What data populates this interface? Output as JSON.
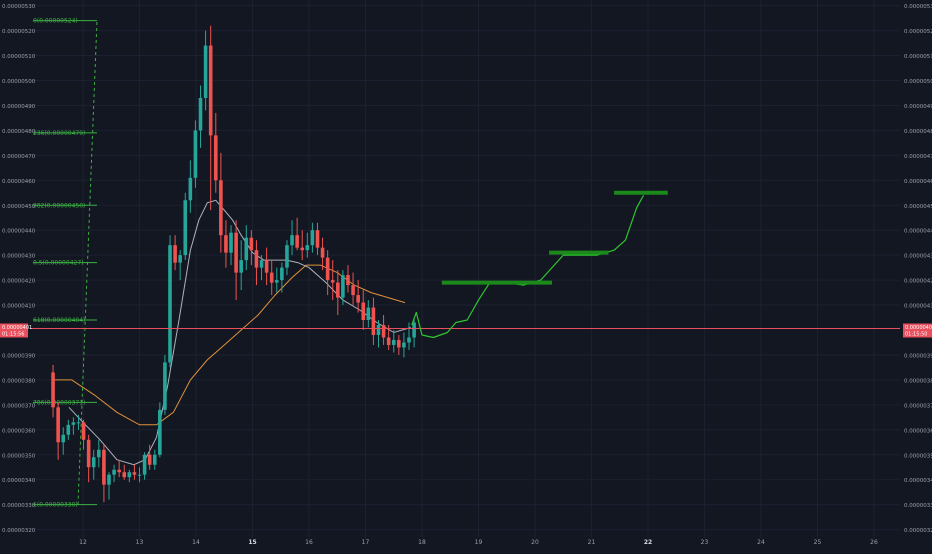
{
  "chart_data": {
    "type": "candlestick",
    "title": "",
    "price_axis_labels": [
      "0.00000530",
      "0.00000520",
      "0.00000510",
      "0.00000500",
      "0.00000490",
      "0.00000480",
      "0.00000470",
      "0.00000460",
      "0.00000450",
      "0.00000440",
      "0.00000430",
      "0.00000420",
      "0.00000410",
      "0.00000390",
      "0.00000380",
      "0.00000370",
      "0.00000360",
      "0.00000350",
      "0.00000340",
      "0.00000330",
      "0.00000320"
    ],
    "price_axis_values": [
      530,
      520,
      510,
      500,
      490,
      480,
      470,
      460,
      450,
      440,
      430,
      420,
      410,
      390,
      380,
      370,
      360,
      350,
      340,
      330,
      320
    ],
    "price_unit_scale": 1e-08,
    "ylim": [
      318,
      533
    ],
    "x_ticks": [
      {
        "label": "12",
        "day": 12,
        "bold": false
      },
      {
        "label": "13",
        "day": 13,
        "bold": false
      },
      {
        "label": "14",
        "day": 14,
        "bold": false
      },
      {
        "label": "15",
        "day": 15,
        "bold": true
      },
      {
        "label": "16",
        "day": 16,
        "bold": false
      },
      {
        "label": "17",
        "day": 17,
        "bold": false
      },
      {
        "label": "18",
        "day": 18,
        "bold": false
      },
      {
        "label": "19",
        "day": 19,
        "bold": false
      },
      {
        "label": "20",
        "day": 20,
        "bold": false
      },
      {
        "label": "21",
        "day": 21,
        "bold": false
      },
      {
        "label": "22",
        "day": 22,
        "bold": true
      },
      {
        "label": "23",
        "day": 23,
        "bold": false
      },
      {
        "label": "24",
        "day": 24,
        "bold": false
      },
      {
        "label": "25",
        "day": 25,
        "bold": false
      },
      {
        "label": "26",
        "day": 26,
        "bold": false
      }
    ],
    "current_price": {
      "left_price": "0.00000401",
      "left_timer": "01:15:56",
      "right_price": "0.00000401",
      "right_timer": "01:15:50",
      "value": 400.6,
      "color": "#e94f5d"
    },
    "fib_levels": [
      {
        "label": "0(0.00000524)",
        "value": 524
      },
      {
        "label": "236(0.00000479)",
        "value": 479
      },
      {
        "label": "382(0.00000450)",
        "value": 450
      },
      {
        "label": "0.5(0.00000427)",
        "value": 427
      },
      {
        "label": "618(0.00000404)",
        "value": 404
      },
      {
        "label": "786(0.00000371)",
        "value": 371
      },
      {
        "label": "1(0.00000330)",
        "value": 330
      }
    ],
    "fib_color": "#3cb043",
    "fib_trend_line": {
      "from": {
        "day": 12.0,
        "price": 330
      },
      "to": {
        "day": 12.25,
        "price": 524
      }
    },
    "up_color": "#26a69a",
    "down_color": "#ef5350",
    "candles": [
      [
        11.47,
        383,
        386,
        365,
        369
      ],
      [
        11.56,
        369,
        371,
        348,
        355
      ],
      [
        11.65,
        355,
        361,
        350,
        358
      ],
      [
        11.74,
        358,
        364,
        356,
        362
      ],
      [
        11.83,
        362,
        365,
        358,
        363
      ],
      [
        11.92,
        363,
        366,
        360,
        363
      ],
      [
        12.01,
        363,
        364,
        352,
        356
      ],
      [
        12.1,
        356,
        358,
        339,
        345
      ],
      [
        12.19,
        345,
        352,
        340,
        349
      ],
      [
        12.28,
        349,
        356,
        345,
        352
      ],
      [
        12.37,
        352,
        354,
        331,
        338
      ],
      [
        12.46,
        338,
        343,
        332,
        342
      ],
      [
        12.55,
        342,
        346,
        339,
        344
      ],
      [
        12.64,
        344,
        348,
        341,
        343
      ],
      [
        12.73,
        343,
        346,
        340,
        341
      ],
      [
        12.82,
        341,
        344,
        339,
        343
      ],
      [
        12.91,
        343,
        346,
        340,
        342
      ],
      [
        13.0,
        342,
        345,
        339,
        342
      ],
      [
        13.09,
        342,
        351,
        340,
        350
      ],
      [
        13.18,
        350,
        354,
        344,
        346
      ],
      [
        13.27,
        346,
        352,
        344,
        350
      ],
      [
        13.36,
        350,
        371,
        349,
        368
      ],
      [
        13.45,
        368,
        390,
        366,
        387
      ],
      [
        13.54,
        387,
        438,
        385,
        434
      ],
      [
        13.63,
        434,
        438,
        424,
        427
      ],
      [
        13.72,
        427,
        432,
        420,
        430
      ],
      [
        13.81,
        430,
        455,
        428,
        452
      ],
      [
        13.9,
        452,
        468,
        447,
        461
      ],
      [
        13.99,
        461,
        484,
        457,
        480
      ],
      [
        14.08,
        480,
        498,
        473,
        493
      ],
      [
        14.17,
        493,
        520,
        488,
        514
      ],
      [
        14.26,
        514,
        522,
        448,
        478
      ],
      [
        14.35,
        478,
        487,
        455,
        460
      ],
      [
        14.44,
        460,
        471,
        431,
        438
      ],
      [
        14.53,
        438,
        444,
        425,
        431
      ],
      [
        14.62,
        431,
        442,
        426,
        439
      ],
      [
        14.71,
        439,
        444,
        412,
        423
      ],
      [
        14.8,
        423,
        436,
        416,
        428
      ],
      [
        14.89,
        428,
        442,
        424,
        437
      ],
      [
        14.98,
        437,
        440,
        426,
        432
      ],
      [
        15.07,
        432,
        436,
        418,
        425
      ],
      [
        15.16,
        425,
        430,
        420,
        428
      ],
      [
        15.25,
        428,
        433,
        418,
        423
      ],
      [
        15.34,
        423,
        428,
        414,
        419
      ],
      [
        15.43,
        419,
        425,
        415,
        420
      ],
      [
        15.52,
        420,
        427,
        415,
        425
      ],
      [
        15.61,
        425,
        436,
        422,
        434
      ],
      [
        15.7,
        434,
        444,
        430,
        438
      ],
      [
        15.79,
        438,
        445,
        432,
        433
      ],
      [
        15.88,
        433,
        440,
        428,
        432
      ],
      [
        15.97,
        432,
        439,
        429,
        434
      ],
      [
        16.06,
        434,
        443,
        431,
        440
      ],
      [
        16.15,
        440,
        443,
        430,
        433
      ],
      [
        16.24,
        433,
        437,
        424,
        429
      ],
      [
        16.33,
        429,
        432,
        414,
        420
      ],
      [
        16.42,
        420,
        428,
        412,
        419
      ],
      [
        16.51,
        419,
        424,
        406,
        413
      ],
      [
        16.6,
        413,
        424,
        410,
        422
      ],
      [
        16.69,
        422,
        426,
        415,
        418
      ],
      [
        16.78,
        418,
        423,
        410,
        414
      ],
      [
        16.87,
        414,
        420,
        407,
        411
      ],
      [
        16.96,
        411,
        416,
        400,
        404
      ],
      [
        17.05,
        404,
        412,
        401,
        409
      ],
      [
        17.14,
        409,
        413,
        394,
        398
      ],
      [
        17.23,
        398,
        404,
        393,
        402
      ],
      [
        17.32,
        402,
        406,
        394,
        397
      ],
      [
        17.41,
        397,
        402,
        392,
        394
      ],
      [
        17.5,
        394,
        400,
        391,
        396
      ],
      [
        17.59,
        396,
        398,
        390,
        393
      ],
      [
        17.68,
        393,
        399,
        389,
        395
      ],
      [
        17.77,
        395,
        403,
        392,
        397
      ],
      [
        17.86,
        397,
        405,
        393,
        403
      ]
    ],
    "ma_gray": [
      [
        11.75,
        369
      ],
      [
        12.0,
        363
      ],
      [
        12.3,
        356
      ],
      [
        12.6,
        348
      ],
      [
        12.9,
        346
      ],
      [
        13.1,
        348
      ],
      [
        13.3,
        357
      ],
      [
        13.5,
        378
      ],
      [
        13.7,
        404
      ],
      [
        13.9,
        432
      ],
      [
        14.05,
        444
      ],
      [
        14.2,
        451
      ],
      [
        14.35,
        452
      ],
      [
        14.5,
        448
      ],
      [
        14.65,
        444
      ],
      [
        14.8,
        438
      ],
      [
        15.0,
        431
      ],
      [
        15.2,
        428
      ],
      [
        15.4,
        428
      ],
      [
        15.6,
        428
      ],
      [
        15.8,
        427
      ],
      [
        16.0,
        425
      ],
      [
        16.3,
        419
      ],
      [
        16.6,
        412
      ],
      [
        16.9,
        408
      ],
      [
        17.2,
        403
      ],
      [
        17.5,
        399
      ],
      [
        17.8,
        401
      ]
    ],
    "ma_orange": [
      [
        11.45,
        380
      ],
      [
        11.8,
        380
      ],
      [
        12.2,
        374
      ],
      [
        12.6,
        367
      ],
      [
        13.0,
        362
      ],
      [
        13.3,
        362
      ],
      [
        13.6,
        367
      ],
      [
        13.9,
        380
      ],
      [
        14.2,
        388
      ],
      [
        14.5,
        394
      ],
      [
        14.8,
        400
      ],
      [
        15.1,
        406
      ],
      [
        15.4,
        414
      ],
      [
        15.7,
        421
      ],
      [
        15.95,
        426
      ],
      [
        16.2,
        426
      ],
      [
        16.5,
        423
      ],
      [
        16.8,
        418
      ],
      [
        17.1,
        415
      ],
      [
        17.4,
        413
      ],
      [
        17.7,
        411
      ]
    ],
    "projection_path": [
      [
        17.82,
        402
      ],
      [
        17.9,
        407
      ],
      [
        18.0,
        398
      ],
      [
        18.2,
        397
      ],
      [
        18.45,
        399
      ],
      [
        18.6,
        403
      ],
      [
        18.8,
        404
      ],
      [
        19.0,
        412
      ],
      [
        19.2,
        419
      ],
      [
        19.5,
        419
      ],
      [
        19.8,
        418
      ],
      [
        20.1,
        420
      ],
      [
        20.3,
        425
      ],
      [
        20.5,
        430
      ],
      [
        20.8,
        430
      ],
      [
        21.1,
        430
      ],
      [
        21.4,
        432
      ],
      [
        21.6,
        436
      ],
      [
        21.8,
        449
      ],
      [
        21.92,
        454
      ]
    ],
    "target_levels": [
      {
        "day_from": 18.35,
        "day_to": 20.3,
        "value": 419
      },
      {
        "day_from": 20.25,
        "day_to": 21.3,
        "value": 431
      },
      {
        "day_from": 21.4,
        "day_to": 22.35,
        "value": 455
      }
    ],
    "target_color": "#1b8a1b"
  }
}
